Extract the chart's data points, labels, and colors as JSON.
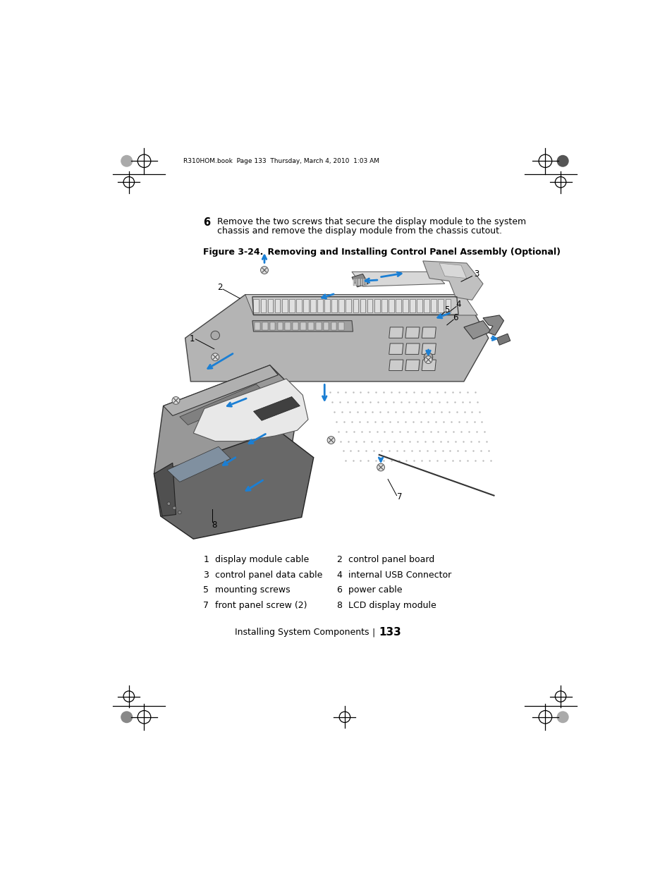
{
  "page_bg": "#ffffff",
  "header_text": "R310HOM.book  Page 133  Thursday, March 4, 2010  1:03 AM",
  "step_number": "6",
  "step_text_line1": "Remove the two screws that secure the display module to the system",
  "step_text_line2": "chassis and remove the display module from the chassis cutout.",
  "figure_label": "Figure 3-24.",
  "figure_title": "    Removing and Installing Control Panel Assembly (Optional)",
  "legend_items": [
    [
      "1",
      "display module cable",
      "2",
      "control panel board"
    ],
    [
      "3",
      "control panel data cable",
      "4",
      "internal USB Connector"
    ],
    [
      "5",
      "mounting screws",
      "6",
      "power cable"
    ],
    [
      "7",
      "front panel screw (2)",
      "8",
      "LCD display module"
    ]
  ],
  "footer_text": "Installing System Components",
  "footer_sep": "|",
  "footer_page": "133",
  "accent": "#1b7fd4",
  "dark": "#222222",
  "mid": "#666666",
  "light": "#aaaaaa",
  "board_fill": "#b0b0b0",
  "board_edge": "#444444",
  "chassis_fill": "#909090",
  "lcd_fill": "#606060",
  "cable_fill": "#d0d0d0"
}
